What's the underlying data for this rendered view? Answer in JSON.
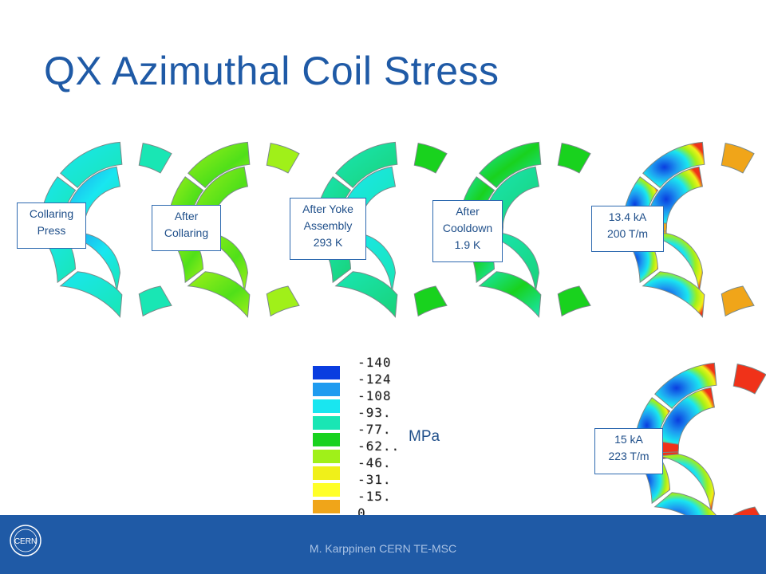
{
  "slide": {
    "title": "QX Azimuthal Coil Stress",
    "footer": "M. Karppinen CERN TE-MSC",
    "units": "MPa",
    "logo_text": "CERN"
  },
  "stages": [
    {
      "line1": "Collaring",
      "line2": "Press",
      "line3": ""
    },
    {
      "line1": "After",
      "line2": "Collaring",
      "line3": ""
    },
    {
      "line1": "After Yoke",
      "line2": "Assembly",
      "line3": "293 K"
    },
    {
      "line1": "After",
      "line2": "Cooldown",
      "line3": "1.9 K"
    },
    {
      "line1": "13.4 kA",
      "line2": "200 T/m",
      "line3": ""
    },
    {
      "line1": "15 kA",
      "line2": "223 T/m",
      "line3": ""
    }
  ],
  "legend": {
    "values": [
      "-140",
      "-124",
      "-108",
      "-93.",
      "-77.",
      "-62..",
      "-46.",
      "-31.",
      "-15.",
      "0"
    ],
    "colors": [
      "#0a3de0",
      "#1e9bf0",
      "#19e6f0",
      "#19e6b4",
      "#19d21e",
      "#a0f019",
      "#f0f019",
      "#ffff28",
      "#f0a519",
      "#f03219"
    ]
  }
}
